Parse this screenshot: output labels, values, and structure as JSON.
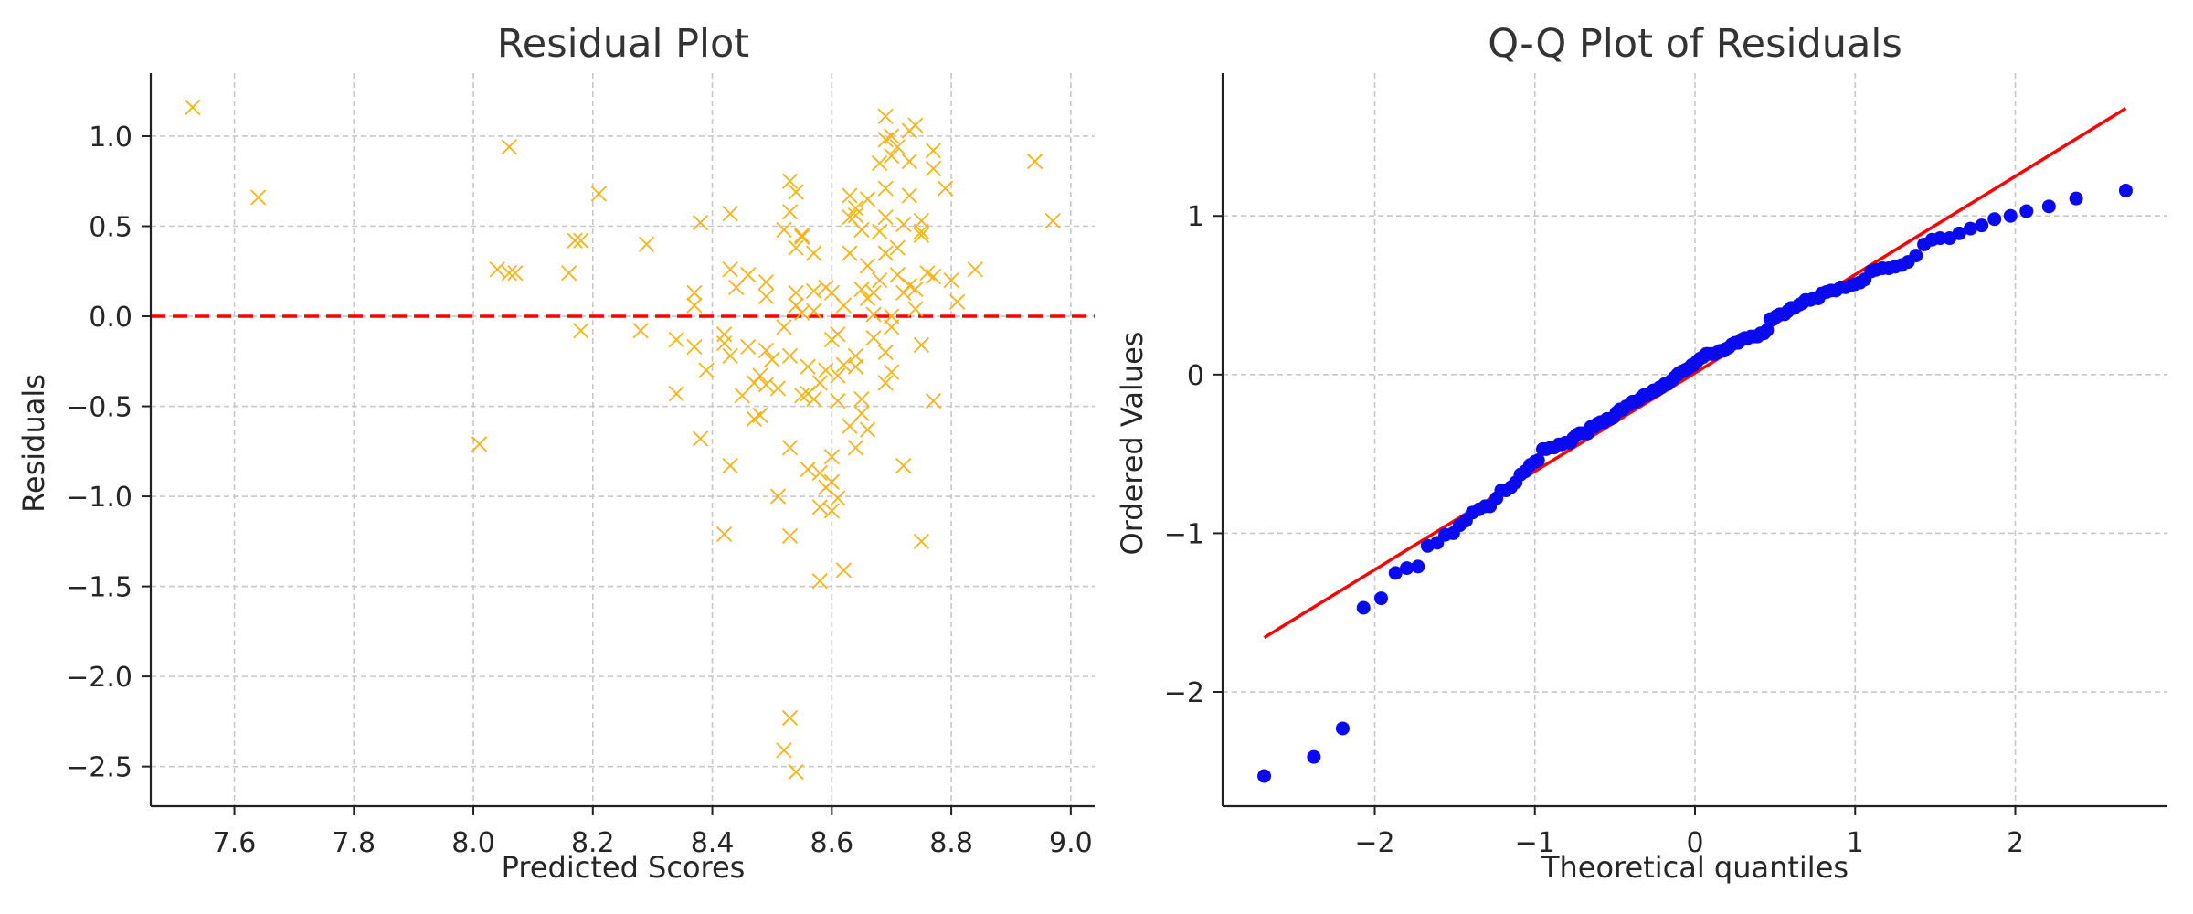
{
  "chart_data": [
    {
      "type": "scatter",
      "title": "Residual Plot",
      "xlabel": "Predicted Scores",
      "ylabel": "Residuals",
      "xlim": [
        7.46,
        9.04
      ],
      "ylim": [
        -2.72,
        1.35
      ],
      "xticks": [
        7.6,
        7.8,
        8.0,
        8.2,
        8.4,
        8.6,
        8.8,
        9.0
      ],
      "xtick_labels": [
        "7.6",
        "7.8",
        "8.0",
        "8.2",
        "8.4",
        "8.6",
        "8.8",
        "9.0"
      ],
      "yticks": [
        1.0,
        0.5,
        0.0,
        -0.5,
        -1.0,
        -1.5,
        -2.0,
        -2.5
      ],
      "ytick_labels": [
        "1.0",
        "0.5",
        "0.0",
        "−0.5",
        "−1.0",
        "−1.5",
        "−2.0",
        "−2.5"
      ],
      "grid": true,
      "marker": "x",
      "marker_color": "#f5b31c",
      "reference_line": {
        "y": 0.0,
        "style": "dashed",
        "color": "#ff0000"
      },
      "points": [
        [
          7.53,
          1.16
        ],
        [
          7.64,
          0.66
        ],
        [
          8.01,
          -0.71
        ],
        [
          8.04,
          0.26
        ],
        [
          8.06,
          0.94
        ],
        [
          8.06,
          0.24
        ],
        [
          8.07,
          0.24
        ],
        [
          8.16,
          0.24
        ],
        [
          8.17,
          0.42
        ],
        [
          8.18,
          0.42
        ],
        [
          8.18,
          -0.08
        ],
        [
          8.21,
          0.68
        ],
        [
          8.28,
          -0.08
        ],
        [
          8.29,
          0.4
        ],
        [
          8.34,
          -0.13
        ],
        [
          8.34,
          -0.43
        ],
        [
          8.37,
          0.13
        ],
        [
          8.37,
          0.06
        ],
        [
          8.37,
          -0.17
        ],
        [
          8.38,
          -0.68
        ],
        [
          8.38,
          0.52
        ],
        [
          8.39,
          -0.3
        ],
        [
          8.42,
          -1.21
        ],
        [
          8.42,
          -0.15
        ],
        [
          8.42,
          -0.1
        ],
        [
          8.43,
          0.57
        ],
        [
          8.43,
          0.26
        ],
        [
          8.43,
          -0.22
        ],
        [
          8.43,
          -0.83
        ],
        [
          8.44,
          0.16
        ],
        [
          8.45,
          -0.44
        ],
        [
          8.46,
          0.23
        ],
        [
          8.46,
          -0.17
        ],
        [
          8.47,
          -0.37
        ],
        [
          8.47,
          -0.57
        ],
        [
          8.48,
          -0.33
        ],
        [
          8.48,
          -0.55
        ],
        [
          8.49,
          0.19
        ],
        [
          8.49,
          0.11
        ],
        [
          8.49,
          -0.19
        ],
        [
          8.49,
          -0.38
        ],
        [
          8.5,
          -0.24
        ],
        [
          8.51,
          -0.4
        ],
        [
          8.51,
          -1.0
        ],
        [
          8.52,
          -2.41
        ],
        [
          8.52,
          -0.06
        ],
        [
          8.52,
          0.48
        ],
        [
          8.53,
          0.75
        ],
        [
          8.53,
          0.58
        ],
        [
          8.53,
          -2.23
        ],
        [
          8.53,
          -0.22
        ],
        [
          8.53,
          -1.22
        ],
        [
          8.53,
          -0.73
        ],
        [
          8.54,
          -2.53
        ],
        [
          8.54,
          0.69
        ],
        [
          8.54,
          0.38
        ],
        [
          8.54,
          0.06
        ],
        [
          8.54,
          0.13
        ],
        [
          8.55,
          -0.44
        ],
        [
          8.55,
          0.44
        ],
        [
          8.55,
          0.45
        ],
        [
          8.55,
          0.02
        ],
        [
          8.56,
          -0.43
        ],
        [
          8.56,
          -0.85
        ],
        [
          8.56,
          -0.28
        ],
        [
          8.57,
          0.14
        ],
        [
          8.57,
          0.35
        ],
        [
          8.57,
          0.03
        ],
        [
          8.57,
          -0.46
        ],
        [
          8.58,
          -0.37
        ],
        [
          8.58,
          -0.87
        ],
        [
          8.58,
          -1.47
        ],
        [
          8.58,
          -1.06
        ],
        [
          8.59,
          0.16
        ],
        [
          8.59,
          -0.3
        ],
        [
          8.59,
          -0.95
        ],
        [
          8.6,
          -0.13
        ],
        [
          8.6,
          -0.78
        ],
        [
          8.6,
          -1.08
        ],
        [
          8.6,
          -0.92
        ],
        [
          8.6,
          0.13
        ],
        [
          8.61,
          -0.1
        ],
        [
          8.61,
          -0.33
        ],
        [
          8.61,
          -0.47
        ],
        [
          8.61,
          -1.01
        ],
        [
          8.62,
          -1.41
        ],
        [
          8.62,
          -0.27
        ],
        [
          8.62,
          0.06
        ],
        [
          8.63,
          0.67
        ],
        [
          8.63,
          0.55
        ],
        [
          8.63,
          0.35
        ],
        [
          8.63,
          -0.61
        ],
        [
          8.64,
          -0.22
        ],
        [
          8.64,
          -0.73
        ],
        [
          8.64,
          -0.28
        ],
        [
          8.64,
          0.6
        ],
        [
          8.64,
          0.56
        ],
        [
          8.65,
          0.48
        ],
        [
          8.65,
          0.15
        ],
        [
          8.65,
          -0.54
        ],
        [
          8.65,
          -0.46
        ],
        [
          8.66,
          0.65
        ],
        [
          8.66,
          0.28
        ],
        [
          8.66,
          -0.63
        ],
        [
          8.66,
          0.1
        ],
        [
          8.67,
          0.13
        ],
        [
          8.67,
          0.01
        ],
        [
          8.67,
          -0.12
        ],
        [
          8.68,
          0.2
        ],
        [
          8.68,
          0.47
        ],
        [
          8.68,
          0.85
        ],
        [
          8.69,
          1.11
        ],
        [
          8.69,
          0.98
        ],
        [
          8.69,
          0.71
        ],
        [
          8.69,
          0.55
        ],
        [
          8.69,
          0.35
        ],
        [
          8.69,
          -0.2
        ],
        [
          8.69,
          -0.37
        ],
        [
          8.7,
          1.0
        ],
        [
          8.7,
          0.89
        ],
        [
          8.7,
          0.0
        ],
        [
          8.7,
          -0.06
        ],
        [
          8.7,
          -0.31
        ],
        [
          8.71,
          0.94
        ],
        [
          8.71,
          0.38
        ],
        [
          8.71,
          0.23
        ],
        [
          8.72,
          0.13
        ],
        [
          8.72,
          0.51
        ],
        [
          8.72,
          -0.83
        ],
        [
          8.73,
          1.03
        ],
        [
          8.73,
          0.86
        ],
        [
          8.73,
          0.67
        ],
        [
          8.73,
          0.17
        ],
        [
          8.74,
          1.06
        ],
        [
          8.74,
          0.15
        ],
        [
          8.74,
          0.04
        ],
        [
          8.75,
          0.53
        ],
        [
          8.75,
          0.47
        ],
        [
          8.75,
          0.45
        ],
        [
          8.75,
          -1.25
        ],
        [
          8.75,
          -0.16
        ],
        [
          8.76,
          0.24
        ],
        [
          8.77,
          0.92
        ],
        [
          8.77,
          0.82
        ],
        [
          8.77,
          0.22
        ],
        [
          8.77,
          -0.47
        ],
        [
          8.79,
          0.71
        ],
        [
          8.8,
          0.2
        ],
        [
          8.81,
          0.08
        ],
        [
          8.84,
          0.26
        ],
        [
          8.94,
          0.86
        ],
        [
          8.97,
          0.53
        ]
      ]
    },
    {
      "type": "scatter",
      "title": "Q-Q Plot of Residuals",
      "xlabel": "Theoretical quantiles",
      "ylabel": "Ordered Values",
      "xlim": [
        -2.95,
        2.95
      ],
      "ylim": [
        -2.72,
        1.9
      ],
      "xticks": [
        -2,
        -1,
        0,
        1,
        2
      ],
      "xtick_labels": [
        "−2",
        "−1",
        "0",
        "1",
        "2"
      ],
      "yticks": [
        1,
        0,
        -1,
        -2
      ],
      "ytick_labels": [
        "1",
        "0",
        "−1",
        "−2"
      ],
      "grid": true,
      "marker_color": "#0a0af0",
      "fit_line": {
        "slope": 0.62,
        "intercept": 0.01,
        "x_range": [
          -2.69,
          2.69
        ],
        "color": "#ff0000"
      },
      "points": [
        [
          -2.69,
          -2.53
        ],
        [
          -2.38,
          -2.41
        ],
        [
          -2.2,
          -2.23
        ],
        [
          -2.07,
          -1.47
        ],
        [
          -1.96,
          -1.41
        ],
        [
          -1.87,
          -1.25
        ],
        [
          -1.8,
          -1.22
        ],
        [
          -1.73,
          -1.21
        ],
        [
          -1.67,
          -1.08
        ],
        [
          -1.61,
          -1.06
        ],
        [
          -1.56,
          -1.01
        ],
        [
          -1.51,
          -1.0
        ],
        [
          -1.47,
          -0.95
        ],
        [
          -1.43,
          -0.92
        ],
        [
          -1.39,
          -0.87
        ],
        [
          -1.35,
          -0.85
        ],
        [
          -1.31,
          -0.83
        ],
        [
          -1.28,
          -0.83
        ],
        [
          -1.24,
          -0.78
        ],
        [
          -1.21,
          -0.73
        ],
        [
          -1.18,
          -0.73
        ],
        [
          -1.15,
          -0.71
        ],
        [
          -1.12,
          -0.68
        ],
        [
          -1.09,
          -0.63
        ],
        [
          -1.06,
          -0.61
        ],
        [
          -1.03,
          -0.57
        ],
        [
          -1.0,
          -0.55
        ],
        [
          -0.98,
          -0.54
        ],
        [
          -0.95,
          -0.47
        ],
        [
          -0.93,
          -0.47
        ],
        [
          -0.9,
          -0.46
        ],
        [
          -0.88,
          -0.46
        ],
        [
          -0.85,
          -0.44
        ],
        [
          -0.83,
          -0.44
        ],
        [
          -0.81,
          -0.43
        ],
        [
          -0.78,
          -0.43
        ],
        [
          -0.76,
          -0.4
        ],
        [
          -0.74,
          -0.38
        ],
        [
          -0.72,
          -0.37
        ],
        [
          -0.7,
          -0.37
        ],
        [
          -0.67,
          -0.37
        ],
        [
          -0.65,
          -0.33
        ],
        [
          -0.63,
          -0.33
        ],
        [
          -0.61,
          -0.31
        ],
        [
          -0.59,
          -0.3
        ],
        [
          -0.57,
          -0.3
        ],
        [
          -0.55,
          -0.28
        ],
        [
          -0.53,
          -0.28
        ],
        [
          -0.51,
          -0.27
        ],
        [
          -0.49,
          -0.24
        ],
        [
          -0.47,
          -0.22
        ],
        [
          -0.45,
          -0.22
        ],
        [
          -0.43,
          -0.2
        ],
        [
          -0.41,
          -0.19
        ],
        [
          -0.39,
          -0.17
        ],
        [
          -0.37,
          -0.17
        ],
        [
          -0.35,
          -0.16
        ],
        [
          -0.34,
          -0.15
        ],
        [
          -0.32,
          -0.13
        ],
        [
          -0.3,
          -0.13
        ],
        [
          -0.28,
          -0.12
        ],
        [
          -0.26,
          -0.1
        ],
        [
          -0.24,
          -0.1
        ],
        [
          -0.22,
          -0.08
        ],
        [
          -0.21,
          -0.08
        ],
        [
          -0.19,
          -0.06
        ],
        [
          -0.17,
          -0.06
        ],
        [
          -0.15,
          -0.04
        ],
        [
          -0.13,
          -0.02
        ],
        [
          -0.11,
          0.0
        ],
        [
          -0.1,
          0.01
        ],
        [
          -0.08,
          0.02
        ],
        [
          -0.06,
          0.03
        ],
        [
          -0.04,
          0.04
        ],
        [
          -0.02,
          0.06
        ],
        [
          -0.01,
          0.06
        ],
        [
          0.01,
          0.08
        ],
        [
          0.03,
          0.1
        ],
        [
          0.05,
          0.11
        ],
        [
          0.07,
          0.13
        ],
        [
          0.08,
          0.13
        ],
        [
          0.1,
          0.13
        ],
        [
          0.12,
          0.13
        ],
        [
          0.14,
          0.14
        ],
        [
          0.16,
          0.15
        ],
        [
          0.18,
          0.15
        ],
        [
          0.19,
          0.16
        ],
        [
          0.21,
          0.17
        ],
        [
          0.23,
          0.19
        ],
        [
          0.25,
          0.2
        ],
        [
          0.27,
          0.2
        ],
        [
          0.29,
          0.22
        ],
        [
          0.31,
          0.23
        ],
        [
          0.33,
          0.23
        ],
        [
          0.35,
          0.24
        ],
        [
          0.37,
          0.24
        ],
        [
          0.39,
          0.24
        ],
        [
          0.41,
          0.26
        ],
        [
          0.43,
          0.26
        ],
        [
          0.45,
          0.28
        ],
        [
          0.47,
          0.35
        ],
        [
          0.49,
          0.35
        ],
        [
          0.51,
          0.37
        ],
        [
          0.53,
          0.38
        ],
        [
          0.56,
          0.38
        ],
        [
          0.58,
          0.4
        ],
        [
          0.6,
          0.42
        ],
        [
          0.62,
          0.42
        ],
        [
          0.65,
          0.44
        ],
        [
          0.67,
          0.45
        ],
        [
          0.69,
          0.47
        ],
        [
          0.72,
          0.47
        ],
        [
          0.74,
          0.48
        ],
        [
          0.77,
          0.48
        ],
        [
          0.79,
          0.51
        ],
        [
          0.82,
          0.52
        ],
        [
          0.85,
          0.53
        ],
        [
          0.88,
          0.53
        ],
        [
          0.91,
          0.55
        ],
        [
          0.94,
          0.55
        ],
        [
          0.97,
          0.56
        ],
        [
          1.0,
          0.57
        ],
        [
          1.03,
          0.58
        ],
        [
          1.06,
          0.6
        ],
        [
          1.1,
          0.65
        ],
        [
          1.13,
          0.66
        ],
        [
          1.17,
          0.67
        ],
        [
          1.21,
          0.67
        ],
        [
          1.25,
          0.68
        ],
        [
          1.29,
          0.69
        ],
        [
          1.33,
          0.71
        ],
        [
          1.38,
          0.75
        ],
        [
          1.43,
          0.82
        ],
        [
          1.48,
          0.85
        ],
        [
          1.53,
          0.86
        ],
        [
          1.59,
          0.86
        ],
        [
          1.65,
          0.89
        ],
        [
          1.72,
          0.92
        ],
        [
          1.79,
          0.94
        ],
        [
          1.87,
          0.98
        ],
        [
          1.97,
          1.0
        ],
        [
          2.07,
          1.03
        ],
        [
          2.21,
          1.06
        ],
        [
          2.38,
          1.11
        ],
        [
          2.69,
          1.16
        ]
      ]
    }
  ]
}
